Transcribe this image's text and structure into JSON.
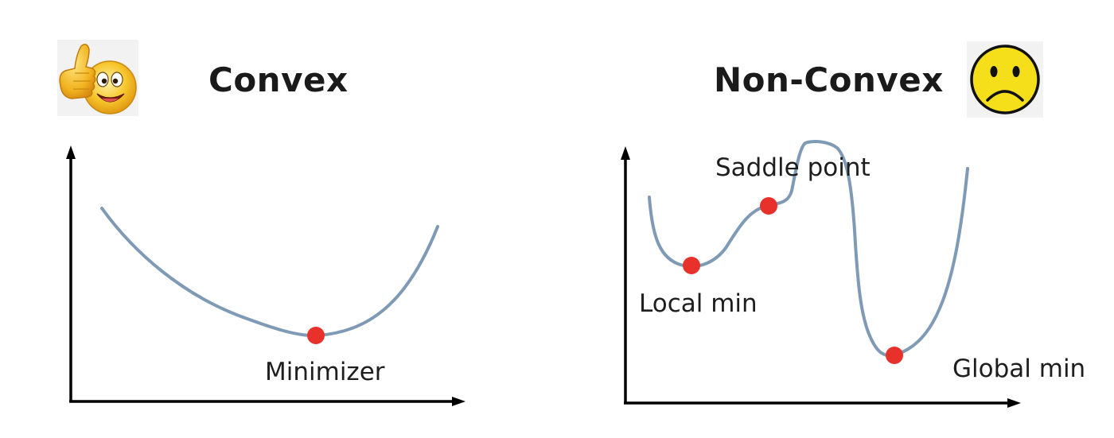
{
  "panels": [
    {
      "title": "Convex",
      "icon": "thumbs-up-smiley-icon",
      "points": [
        {
          "label": "Minimizer",
          "color": "#e8312a"
        }
      ]
    },
    {
      "title": "Non-Convex",
      "icon": "sad-face-icon",
      "points": [
        {
          "label": "Saddle point",
          "color": "#e8312a"
        },
        {
          "label": "Local min",
          "color": "#e8312a"
        },
        {
          "label": "Global min",
          "color": "#e8312a"
        }
      ]
    }
  ],
  "colors": {
    "curve": "#7f9ab5",
    "axis": "#000000",
    "point": "#e8312a",
    "sad_face": "#f5df1b",
    "smiley": "#f7c62c"
  }
}
